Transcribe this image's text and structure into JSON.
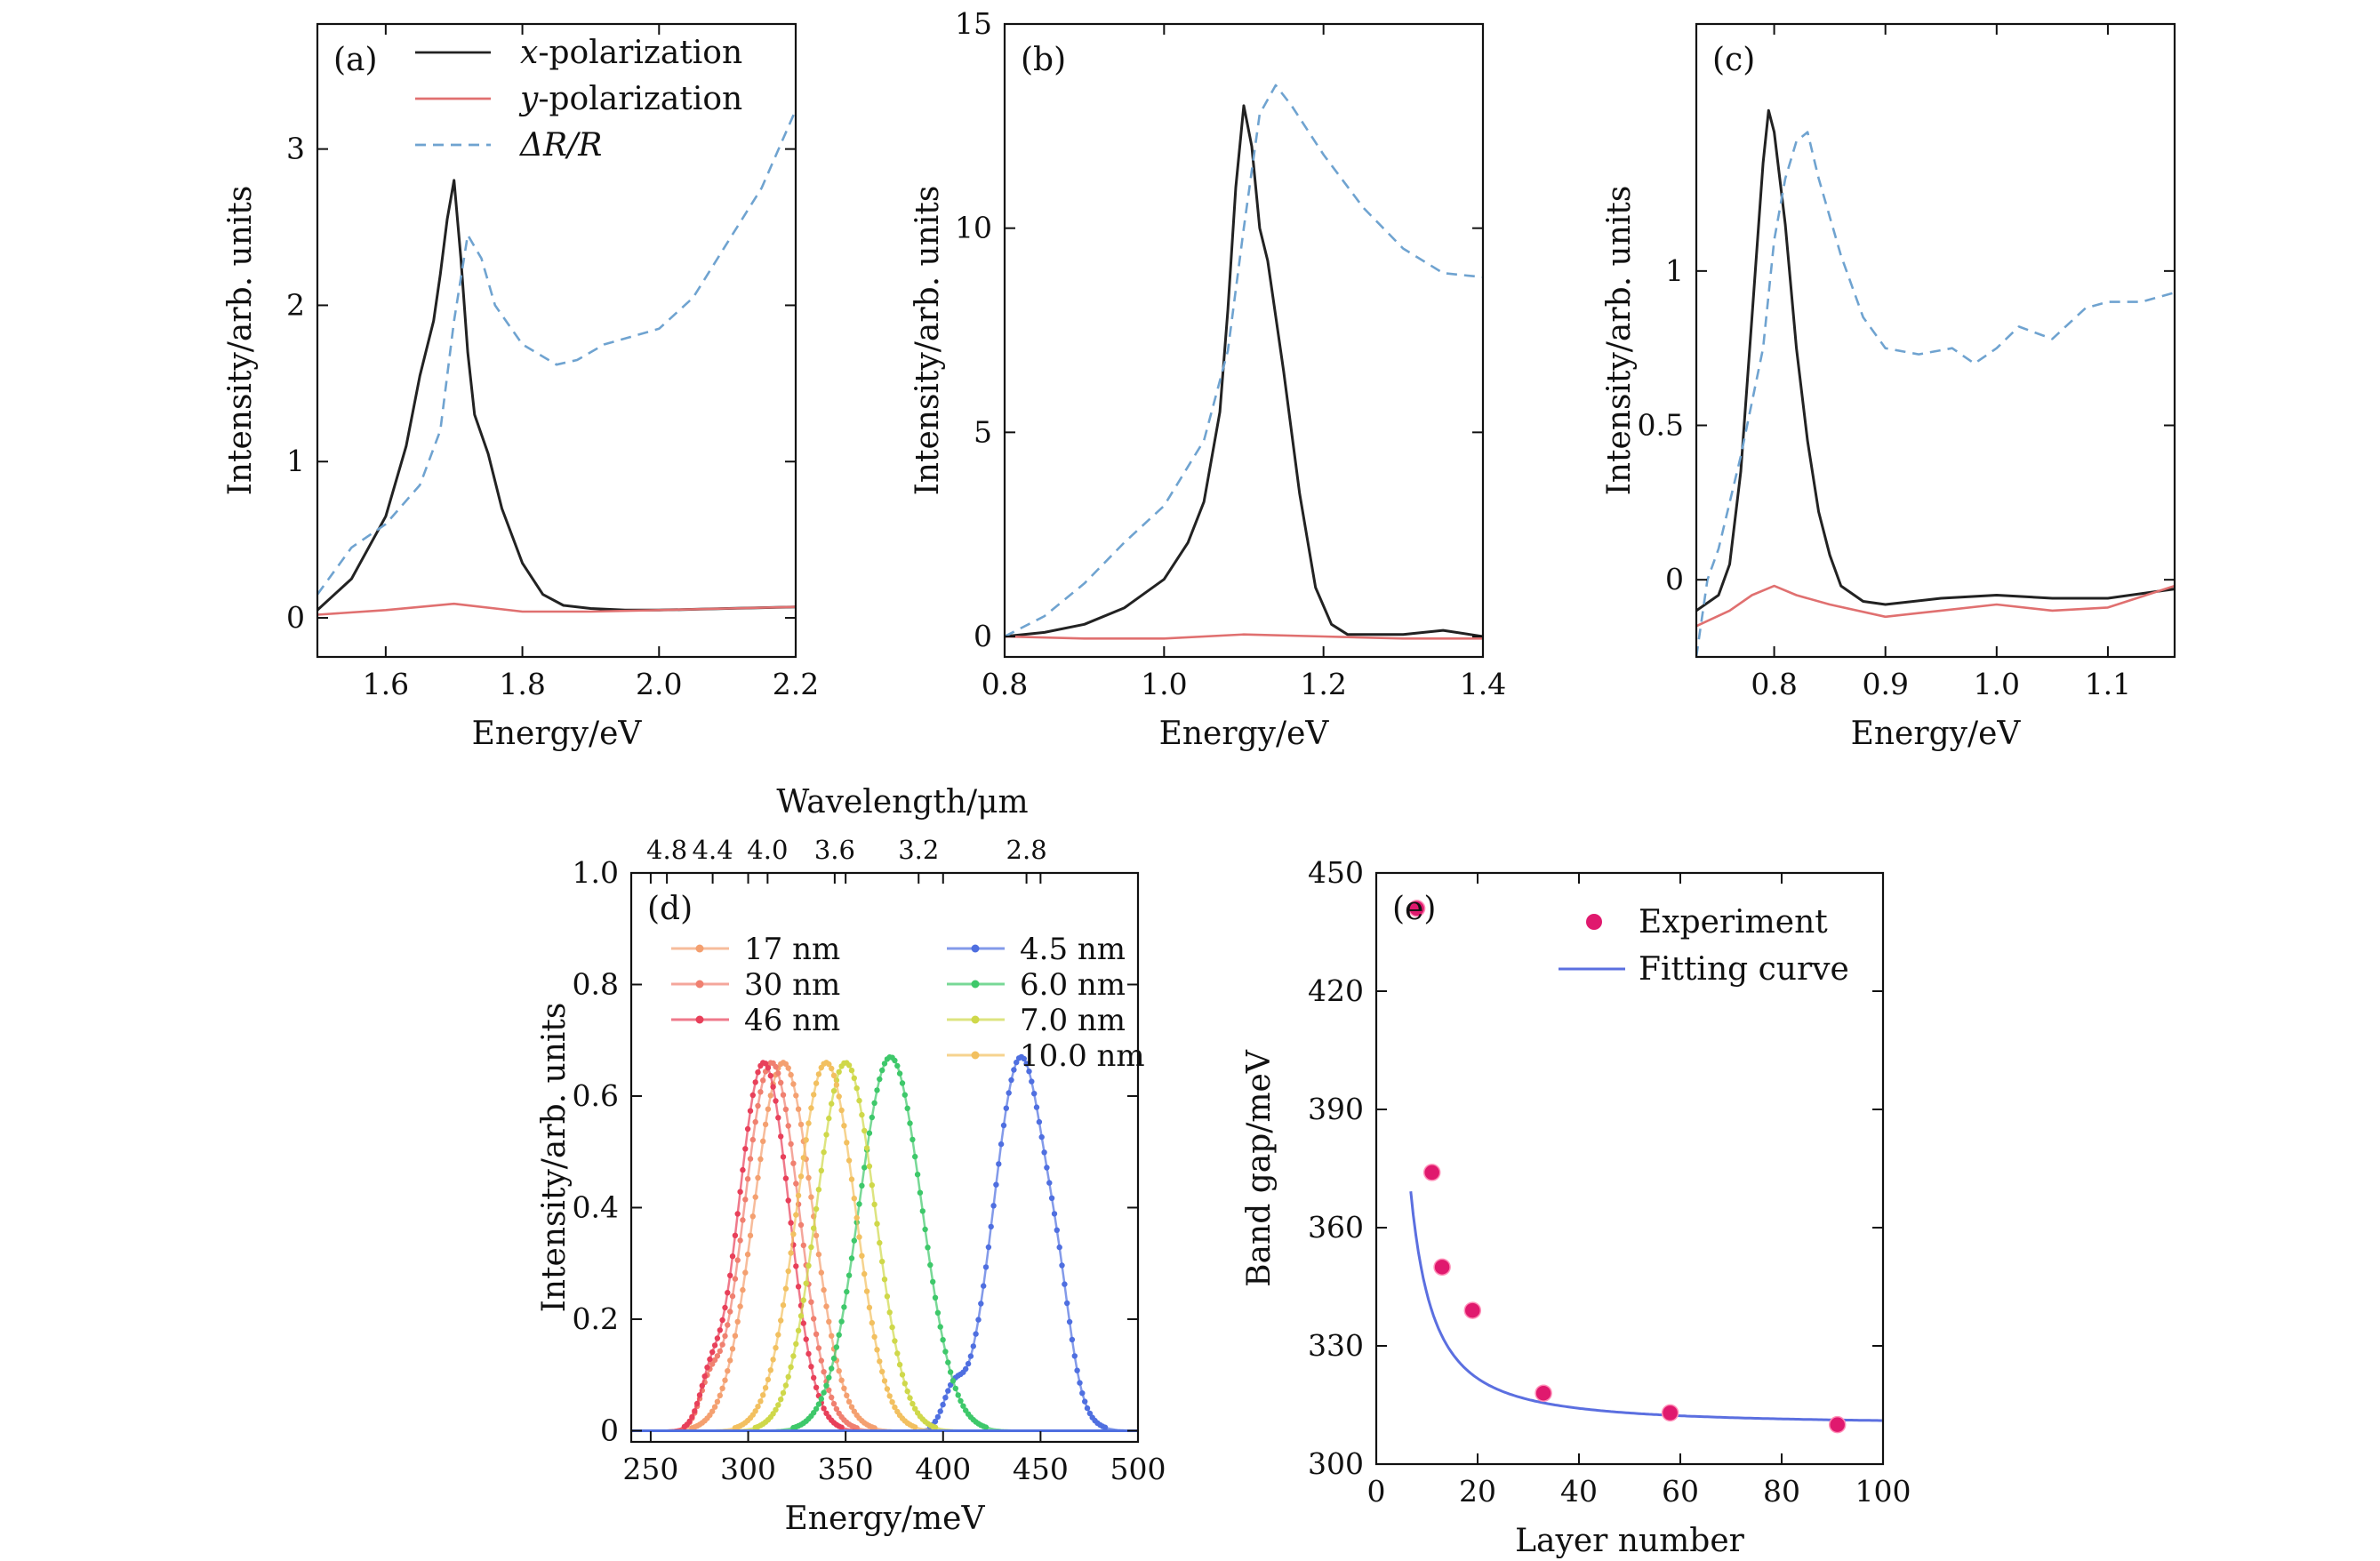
{
  "chart_data": [
    {
      "id": "a",
      "type": "line",
      "panel_label": "(a)",
      "xlabel": "Energy/eV",
      "ylabel": "Intensity/arb. units",
      "xlim": [
        1.5,
        2.2
      ],
      "ylim": [
        -0.25,
        3.8
      ],
      "xticks": [
        1.6,
        1.8,
        2.0,
        2.2
      ],
      "xtick_labels": [
        "1.6",
        "1.8",
        "2.0",
        "2.2"
      ],
      "yticks": [
        0,
        1,
        2,
        3
      ],
      "ytick_labels": [
        "0",
        "1",
        "2",
        "3"
      ],
      "legend": "top-right",
      "series": [
        {
          "name": "x-polarization",
          "legend_italic": "x",
          "legend_rest": "-polarization",
          "color": "#222222",
          "dash": "none",
          "x": [
            1.5,
            1.55,
            1.6,
            1.63,
            1.65,
            1.67,
            1.68,
            1.69,
            1.7,
            1.71,
            1.72,
            1.73,
            1.75,
            1.77,
            1.8,
            1.83,
            1.86,
            1.9,
            1.95,
            2.0,
            2.1,
            2.2
          ],
          "y": [
            0.05,
            0.25,
            0.65,
            1.1,
            1.55,
            1.9,
            2.2,
            2.55,
            2.8,
            2.3,
            1.7,
            1.3,
            1.05,
            0.7,
            0.35,
            0.15,
            0.08,
            0.06,
            0.05,
            0.05,
            0.06,
            0.07
          ]
        },
        {
          "name": "y-polarization",
          "legend_italic": "y",
          "legend_rest": "-polarization",
          "color": "#e07070",
          "dash": "none",
          "x": [
            1.5,
            1.6,
            1.7,
            1.8,
            1.9,
            2.0,
            2.1,
            2.2
          ],
          "y": [
            0.02,
            0.05,
            0.09,
            0.04,
            0.04,
            0.05,
            0.06,
            0.07
          ]
        },
        {
          "name": "ΔR/R",
          "legend_italic": "ΔR/R",
          "legend_rest": "",
          "color": "#6fa3d0",
          "dash": "12,8",
          "x": [
            1.5,
            1.55,
            1.6,
            1.65,
            1.68,
            1.7,
            1.72,
            1.74,
            1.76,
            1.8,
            1.85,
            1.88,
            1.92,
            2.0,
            2.05,
            2.1,
            2.15,
            2.2
          ],
          "y": [
            0.15,
            0.45,
            0.6,
            0.85,
            1.2,
            1.9,
            2.45,
            2.3,
            2.0,
            1.75,
            1.62,
            1.65,
            1.75,
            1.85,
            2.05,
            2.4,
            2.75,
            3.25
          ]
        }
      ]
    },
    {
      "id": "b",
      "type": "line",
      "panel_label": "(b)",
      "xlabel": "Energy/eV",
      "ylabel": "Intensity/arb. units",
      "xlim": [
        0.8,
        1.4
      ],
      "ylim": [
        -0.5,
        15
      ],
      "xticks": [
        0.8,
        1.0,
        1.2,
        1.4
      ],
      "xtick_labels": [
        "0.8",
        "1.0",
        "1.2",
        "1.4"
      ],
      "yticks": [
        0,
        5,
        10,
        15
      ],
      "ytick_labels": [
        "0",
        "5",
        "10",
        "15"
      ],
      "series": [
        {
          "name": "x-polarization",
          "color": "#222222",
          "dash": "none",
          "x": [
            0.8,
            0.85,
            0.9,
            0.95,
            1.0,
            1.03,
            1.05,
            1.07,
            1.08,
            1.09,
            1.1,
            1.11,
            1.12,
            1.13,
            1.15,
            1.17,
            1.19,
            1.21,
            1.23,
            1.3,
            1.35,
            1.4
          ],
          "y": [
            0,
            0.1,
            0.3,
            0.7,
            1.4,
            2.3,
            3.3,
            5.5,
            8.0,
            11.0,
            13.0,
            12.0,
            10.0,
            9.2,
            6.5,
            3.5,
            1.2,
            0.3,
            0.05,
            0.05,
            0.15,
            0.0
          ]
        },
        {
          "name": "y-polarization",
          "color": "#e07070",
          "dash": "none",
          "x": [
            0.8,
            0.9,
            1.0,
            1.1,
            1.2,
            1.3,
            1.4
          ],
          "y": [
            0.0,
            -0.05,
            -0.05,
            0.05,
            0.0,
            -0.05,
            -0.05
          ]
        },
        {
          "name": "ΔR/R",
          "color": "#6fa3d0",
          "dash": "12,8",
          "x": [
            0.8,
            0.85,
            0.9,
            0.95,
            1.0,
            1.05,
            1.08,
            1.1,
            1.12,
            1.14,
            1.16,
            1.2,
            1.25,
            1.3,
            1.35,
            1.4
          ],
          "y": [
            0.0,
            0.5,
            1.3,
            2.3,
            3.2,
            4.8,
            7.0,
            10.0,
            12.8,
            13.5,
            13.0,
            11.8,
            10.5,
            9.5,
            8.9,
            8.8
          ]
        }
      ]
    },
    {
      "id": "c",
      "type": "line",
      "panel_label": "(c)",
      "xlabel": "Energy/eV",
      "ylabel": "Intensity/arb. units",
      "xlim": [
        0.73,
        1.16
      ],
      "ylim": [
        -0.25,
        1.8
      ],
      "xticks": [
        0.8,
        0.9,
        1.0,
        1.1
      ],
      "xtick_labels": [
        "0.8",
        "0.9",
        "1.0",
        "1.1"
      ],
      "yticks": [
        0,
        0.5,
        1
      ],
      "ytick_labels": [
        "0",
        "0.5",
        "1"
      ],
      "series": [
        {
          "name": "x-polarization",
          "color": "#222222",
          "dash": "none",
          "x": [
            0.73,
            0.75,
            0.76,
            0.77,
            0.78,
            0.79,
            0.795,
            0.8,
            0.81,
            0.82,
            0.83,
            0.84,
            0.85,
            0.86,
            0.88,
            0.9,
            0.95,
            1.0,
            1.05,
            1.1,
            1.16
          ],
          "y": [
            -0.1,
            -0.05,
            0.05,
            0.35,
            0.85,
            1.35,
            1.52,
            1.45,
            1.15,
            0.75,
            0.45,
            0.22,
            0.08,
            -0.02,
            -0.07,
            -0.08,
            -0.06,
            -0.05,
            -0.06,
            -0.06,
            -0.03
          ]
        },
        {
          "name": "y-polarization",
          "color": "#e07070",
          "dash": "none",
          "x": [
            0.73,
            0.76,
            0.78,
            0.8,
            0.82,
            0.85,
            0.9,
            0.95,
            1.0,
            1.05,
            1.1,
            1.16
          ],
          "y": [
            -0.15,
            -0.1,
            -0.05,
            -0.02,
            -0.05,
            -0.08,
            -0.12,
            -0.1,
            -0.08,
            -0.1,
            -0.09,
            -0.02
          ]
        },
        {
          "name": "ΔR/R",
          "color": "#6fa3d0",
          "dash": "12,8",
          "x": [
            0.73,
            0.74,
            0.75,
            0.77,
            0.79,
            0.8,
            0.81,
            0.82,
            0.83,
            0.84,
            0.86,
            0.88,
            0.9,
            0.93,
            0.96,
            0.98,
            1.0,
            1.02,
            1.05,
            1.08,
            1.1,
            1.13,
            1.16
          ],
          "y": [
            -0.25,
            0.0,
            0.1,
            0.4,
            0.75,
            1.1,
            1.3,
            1.42,
            1.45,
            1.3,
            1.05,
            0.85,
            0.75,
            0.73,
            0.75,
            0.7,
            0.75,
            0.82,
            0.78,
            0.88,
            0.9,
            0.9,
            0.93
          ]
        }
      ]
    },
    {
      "id": "d",
      "type": "line",
      "panel_label": "(d)",
      "xlabel": "Energy/meV",
      "ylabel": "Intensity/arb. units",
      "top_axis_label": "Wavelength/μm",
      "top_ticks_um": [
        4.8,
        4.4,
        4.0,
        3.6,
        3.2,
        2.8
      ],
      "top_tick_labels": [
        "4.8",
        "4.4",
        "4.0",
        "3.6",
        "3.2",
        "2.8"
      ],
      "xlim": [
        240,
        500
      ],
      "ylim": [
        -0.02,
        1.0
      ],
      "xticks": [
        250,
        300,
        350,
        400,
        450,
        500
      ],
      "xtick_labels": [
        "250",
        "300",
        "350",
        "400",
        "450",
        "500"
      ],
      "yticks": [
        0,
        0.2,
        0.4,
        0.6,
        0.8,
        1.0
      ],
      "ytick_labels": [
        "0",
        "0.2",
        "0.4",
        "0.6",
        "0.8",
        "1.0"
      ],
      "series": [
        {
          "name": "17 nm",
          "color": "#f4a070",
          "peak": 318,
          "width": 15,
          "height": 0.66
        },
        {
          "name": "30 nm",
          "color": "#f08070",
          "peak": 312,
          "width": 14,
          "height": 0.66
        },
        {
          "name": "46 nm",
          "color": "#e8405a",
          "peak": 308,
          "width": 13,
          "height": 0.66
        },
        {
          "name": "4.5 nm",
          "color": "#4f6fe0",
          "peak": 440,
          "width": 14,
          "height": 0.67
        },
        {
          "name": "6.0 nm",
          "color": "#3ec86a",
          "peak": 373,
          "width": 16,
          "height": 0.67
        },
        {
          "name": "7.0 nm",
          "color": "#cfd84a",
          "peak": 350,
          "width": 15,
          "height": 0.66
        },
        {
          "name": "10.0 nm",
          "color": "#f2c060",
          "peak": 340,
          "width": 15,
          "height": 0.66
        }
      ]
    },
    {
      "id": "e",
      "type": "scatter",
      "panel_label": "(e)",
      "xlabel": "Layer number",
      "ylabel": "Band gap/meV",
      "xlim": [
        0,
        100
      ],
      "ylim": [
        300,
        450
      ],
      "xticks": [
        0,
        20,
        40,
        60,
        80,
        100
      ],
      "xtick_labels": [
        "0",
        "20",
        "40",
        "60",
        "80",
        "100"
      ],
      "yticks": [
        300,
        330,
        360,
        390,
        420,
        450
      ],
      "ytick_labels": [
        "300",
        "330",
        "360",
        "390",
        "420",
        "450"
      ],
      "legend": "top-right",
      "series": [
        {
          "name": "Experiment",
          "color": "#e0196e",
          "x": [
            8,
            11,
            13,
            19,
            33,
            58,
            91
          ],
          "y": [
            441,
            374,
            350,
            339,
            318,
            313,
            310
          ]
        },
        {
          "name": "Fitting curve",
          "color": "#5b6fe0",
          "model": "y = 310 + 1050/x^1.5"
        }
      ]
    }
  ]
}
